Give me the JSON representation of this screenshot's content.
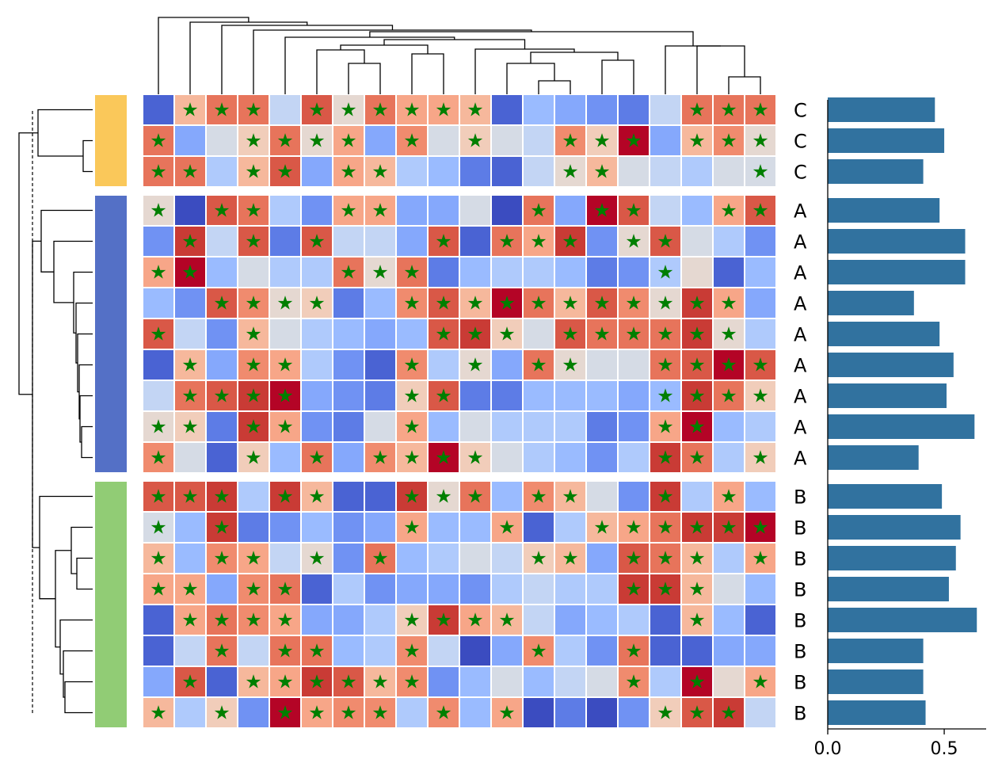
{
  "chart_data": {
    "type": "heatmap",
    "subtype": "clustermap",
    "rows": 20,
    "cols": 20,
    "groups": [
      {
        "label": "C",
        "color": "#fac85a",
        "rows": 3
      },
      {
        "label": "A",
        "color": "#5470c6",
        "rows": 9
      },
      {
        "label": "B",
        "color": "#91cc75",
        "rows": 8
      }
    ],
    "row_labels": [
      "C",
      "C",
      "C",
      "A",
      "A",
      "A",
      "A",
      "A",
      "A",
      "A",
      "A",
      "A",
      "B",
      "B",
      "B",
      "B",
      "B",
      "B",
      "B",
      "B"
    ],
    "level_colors": [
      "#3b4cc0",
      "#4a63d3",
      "#5d7ce6",
      "#7092f3",
      "#85a8fc",
      "#9abbff",
      "#afcafc",
      "#c3d5f4",
      "#d5dbe5",
      "#e5d8d1",
      "#f1cdba",
      "#f6b89c",
      "#f7a688",
      "#f08b6e",
      "#e7745b",
      "#d95847",
      "#c93b35",
      "#b40426"
    ],
    "marker_symbol": "★",
    "marker_color": "#007f00",
    "matrix_levels": [
      [
        1,
        11,
        14,
        14,
        7,
        15,
        9,
        14,
        12,
        12,
        11,
        1,
        5,
        4,
        3,
        2,
        7,
        14,
        14,
        14
      ],
      [
        14,
        4,
        8,
        10,
        14,
        9,
        12,
        4,
        13,
        8,
        10,
        8,
        7,
        13,
        10,
        17,
        4,
        11,
        13,
        9
      ],
      [
        14,
        14,
        6,
        11,
        15,
        4,
        12,
        11,
        6,
        5,
        2,
        1,
        7,
        9,
        11,
        8,
        7,
        6,
        8,
        8
      ],
      [
        9,
        0,
        15,
        14,
        6,
        3,
        12,
        12,
        4,
        4,
        8,
        0,
        14,
        4,
        17,
        15,
        7,
        5,
        12,
        15
      ],
      [
        3,
        16,
        7,
        15,
        2,
        15,
        7,
        7,
        4,
        15,
        1,
        14,
        12,
        16,
        3,
        9,
        15,
        8,
        6,
        3
      ],
      [
        12,
        17,
        5,
        8,
        6,
        6,
        14,
        9,
        14,
        2,
        5,
        6,
        6,
        5,
        2,
        3,
        6,
        9,
        1,
        5
      ],
      [
        5,
        3,
        15,
        13,
        9,
        10,
        2,
        5,
        13,
        15,
        11,
        17,
        14,
        11,
        15,
        13,
        9,
        16,
        12,
        4
      ],
      [
        15,
        7,
        3,
        11,
        8,
        6,
        5,
        4,
        5,
        15,
        16,
        10,
        8,
        15,
        14,
        14,
        14,
        16,
        9,
        6
      ],
      [
        1,
        11,
        4,
        13,
        12,
        6,
        3,
        1,
        13,
        6,
        9,
        4,
        14,
        9,
        8,
        8,
        14,
        15,
        17,
        15
      ],
      [
        7,
        14,
        15,
        16,
        17,
        4,
        3,
        2,
        10,
        15,
        2,
        2,
        5,
        5,
        5,
        4,
        5,
        16,
        14,
        10
      ],
      [
        9,
        10,
        2,
        16,
        12,
        3,
        2,
        8,
        12,
        5,
        8,
        6,
        6,
        6,
        2,
        3,
        12,
        17,
        5,
        6
      ],
      [
        13,
        8,
        1,
        10,
        5,
        14,
        4,
        13,
        11,
        17,
        10,
        8,
        6,
        5,
        3,
        6,
        16,
        14,
        6,
        10
      ],
      [
        15,
        15,
        16,
        6,
        16,
        11,
        1,
        1,
        16,
        9,
        14,
        5,
        13,
        11,
        8,
        3,
        16,
        6,
        12,
        5
      ],
      [
        8,
        5,
        16,
        2,
        3,
        5,
        3,
        4,
        12,
        5,
        5,
        12,
        1,
        6,
        11,
        12,
        14,
        16,
        16,
        17
      ],
      [
        11,
        5,
        13,
        12,
        7,
        9,
        3,
        14,
        5,
        6,
        8,
        7,
        10,
        11,
        4,
        15,
        14,
        11,
        6,
        12
      ],
      [
        12,
        12,
        4,
        13,
        14,
        1,
        6,
        3,
        4,
        4,
        3,
        6,
        7,
        6,
        6,
        16,
        16,
        11,
        8,
        5
      ],
      [
        1,
        12,
        14,
        13,
        12,
        4,
        4,
        6,
        10,
        16,
        12,
        11,
        7,
        4,
        5,
        6,
        1,
        11,
        5,
        1
      ],
      [
        1,
        7,
        14,
        7,
        14,
        14,
        5,
        6,
        13,
        7,
        0,
        4,
        13,
        6,
        3,
        14,
        1,
        1,
        4,
        4
      ],
      [
        4,
        15,
        1,
        11,
        12,
        16,
        15,
        11,
        13,
        3,
        5,
        8,
        5,
        7,
        8,
        13,
        6,
        17,
        9,
        12
      ],
      [
        11,
        6,
        10,
        3,
        17,
        12,
        13,
        13,
        6,
        13,
        5,
        12,
        0,
        2,
        0,
        3,
        10,
        15,
        16,
        7
      ]
    ],
    "markers": [
      [
        0,
        1,
        1,
        1,
        0,
        1,
        1,
        1,
        1,
        1,
        1,
        0,
        0,
        0,
        0,
        0,
        0,
        1,
        1,
        1
      ],
      [
        1,
        0,
        0,
        1,
        1,
        1,
        1,
        0,
        1,
        0,
        1,
        0,
        0,
        1,
        1,
        1,
        0,
        1,
        1,
        1
      ],
      [
        1,
        1,
        0,
        1,
        1,
        0,
        1,
        1,
        0,
        0,
        0,
        0,
        0,
        1,
        1,
        0,
        0,
        0,
        0,
        1
      ],
      [
        1,
        0,
        1,
        1,
        0,
        0,
        1,
        1,
        0,
        0,
        0,
        0,
        1,
        0,
        1,
        1,
        0,
        0,
        1,
        1
      ],
      [
        0,
        1,
        0,
        1,
        0,
        1,
        0,
        0,
        0,
        1,
        0,
        1,
        1,
        1,
        0,
        1,
        1,
        0,
        0,
        0
      ],
      [
        1,
        1,
        0,
        0,
        0,
        0,
        1,
        1,
        1,
        0,
        0,
        0,
        0,
        0,
        0,
        0,
        1,
        0,
        0,
        0
      ],
      [
        0,
        0,
        1,
        1,
        1,
        1,
        0,
        0,
        1,
        1,
        1,
        1,
        1,
        1,
        1,
        1,
        1,
        1,
        1,
        0
      ],
      [
        1,
        0,
        0,
        1,
        0,
        0,
        0,
        0,
        0,
        1,
        1,
        1,
        0,
        1,
        1,
        1,
        1,
        1,
        1,
        0
      ],
      [
        0,
        1,
        0,
        1,
        1,
        0,
        0,
        0,
        1,
        0,
        1,
        0,
        1,
        1,
        0,
        0,
        1,
        1,
        1,
        1
      ],
      [
        0,
        1,
        1,
        1,
        1,
        0,
        0,
        0,
        1,
        1,
        0,
        0,
        0,
        0,
        0,
        0,
        1,
        1,
        1,
        1
      ],
      [
        1,
        1,
        0,
        1,
        1,
        0,
        0,
        0,
        1,
        0,
        0,
        0,
        0,
        0,
        0,
        0,
        1,
        1,
        0,
        0
      ],
      [
        1,
        0,
        0,
        1,
        0,
        1,
        0,
        1,
        1,
        1,
        1,
        0,
        0,
        0,
        0,
        0,
        1,
        1,
        0,
        1
      ],
      [
        1,
        1,
        1,
        0,
        1,
        1,
        0,
        0,
        1,
        1,
        1,
        0,
        1,
        1,
        0,
        0,
        1,
        0,
        1,
        0
      ],
      [
        1,
        0,
        1,
        0,
        0,
        0,
        0,
        0,
        1,
        0,
        0,
        1,
        0,
        0,
        1,
        1,
        1,
        1,
        1,
        1
      ],
      [
        1,
        0,
        1,
        1,
        0,
        1,
        0,
        1,
        0,
        0,
        0,
        0,
        1,
        1,
        0,
        1,
        1,
        1,
        0,
        1
      ],
      [
        1,
        1,
        0,
        1,
        1,
        0,
        0,
        0,
        0,
        0,
        0,
        0,
        0,
        0,
        0,
        1,
        1,
        1,
        0,
        0
      ],
      [
        0,
        1,
        1,
        1,
        1,
        0,
        0,
        0,
        1,
        1,
        1,
        1,
        0,
        0,
        0,
        0,
        0,
        1,
        0,
        0
      ],
      [
        0,
        0,
        1,
        0,
        1,
        1,
        0,
        0,
        1,
        0,
        0,
        0,
        1,
        0,
        0,
        1,
        0,
        0,
        0,
        0
      ],
      [
        0,
        1,
        0,
        1,
        1,
        1,
        1,
        1,
        1,
        0,
        0,
        0,
        0,
        0,
        0,
        1,
        0,
        1,
        0,
        1
      ],
      [
        1,
        0,
        1,
        0,
        1,
        1,
        1,
        1,
        0,
        1,
        0,
        1,
        0,
        0,
        0,
        0,
        1,
        1,
        1,
        0
      ]
    ],
    "bar_values": [
      0.46,
      0.5,
      0.41,
      0.48,
      0.59,
      0.59,
      0.37,
      0.48,
      0.54,
      0.51,
      0.63,
      0.39,
      0.49,
      0.57,
      0.55,
      0.52,
      0.64,
      0.41,
      0.41,
      0.42
    ],
    "bar_color": "#31729f",
    "bar_xlim": [
      0,
      0.68
    ],
    "bar_ticks": [
      "0.0",
      "0.5"
    ],
    "bar_tick_values": [
      0.0,
      0.5
    ]
  }
}
